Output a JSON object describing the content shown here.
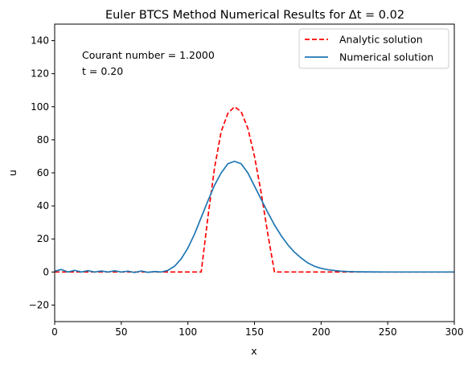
{
  "chart_data": {
    "type": "line",
    "title": "Euler BTCS Method Numerical Results for Δt = 0.02",
    "xlabel": "x",
    "ylabel": "u",
    "xlim": [
      0,
      300
    ],
    "ylim": [
      -30,
      150
    ],
    "xticks": [
      0,
      50,
      100,
      150,
      200,
      250,
      300
    ],
    "yticks": [
      -20,
      0,
      20,
      40,
      60,
      80,
      100,
      120,
      140
    ],
    "ytick_labels": [
      "−20",
      "0",
      "20",
      "40",
      "60",
      "80",
      "100",
      "120",
      "140"
    ],
    "grid": false,
    "legend_position": "top-right",
    "annotations": [
      "Courant number = 1.2000",
      "t = 0.20"
    ],
    "series": [
      {
        "name": "Analytic solution",
        "color": "#ff0000",
        "style": "dashed",
        "x": [
          0,
          110,
          115,
          120,
          125,
          130,
          135,
          140,
          145,
          150,
          155,
          160,
          165,
          170,
          300
        ],
        "y": [
          0,
          0,
          33,
          63,
          85,
          96,
          100,
          97,
          87,
          70,
          48,
          23,
          0,
          0,
          0
        ]
      },
      {
        "name": "Numerical solution",
        "color": "#1f77b4",
        "style": "solid",
        "x": [
          0,
          5,
          10,
          15,
          20,
          25,
          30,
          35,
          40,
          45,
          50,
          55,
          60,
          65,
          70,
          75,
          80,
          85,
          90,
          95,
          100,
          105,
          110,
          115,
          120,
          125,
          130,
          135,
          140,
          145,
          150,
          155,
          160,
          165,
          170,
          175,
          180,
          185,
          190,
          195,
          200,
          205,
          210,
          215,
          220,
          225,
          230,
          240,
          250,
          260,
          270,
          280,
          290,
          300
        ],
        "y": [
          0.5,
          1.5,
          0,
          1,
          0,
          0.8,
          0,
          0.6,
          0,
          0.7,
          0,
          0.5,
          -0.3,
          0.6,
          -0.2,
          0.3,
          0,
          1,
          3.5,
          8,
          14.5,
          23,
          33,
          43,
          52.5,
          60,
          65.5,
          67,
          65.5,
          60,
          52,
          44,
          36,
          28.5,
          22,
          16.5,
          12,
          8.5,
          5.5,
          3.5,
          2.2,
          1.4,
          0.9,
          0.5,
          0.3,
          0.2,
          0.1,
          0.05,
          0,
          0,
          0,
          0,
          0,
          0
        ]
      }
    ]
  }
}
